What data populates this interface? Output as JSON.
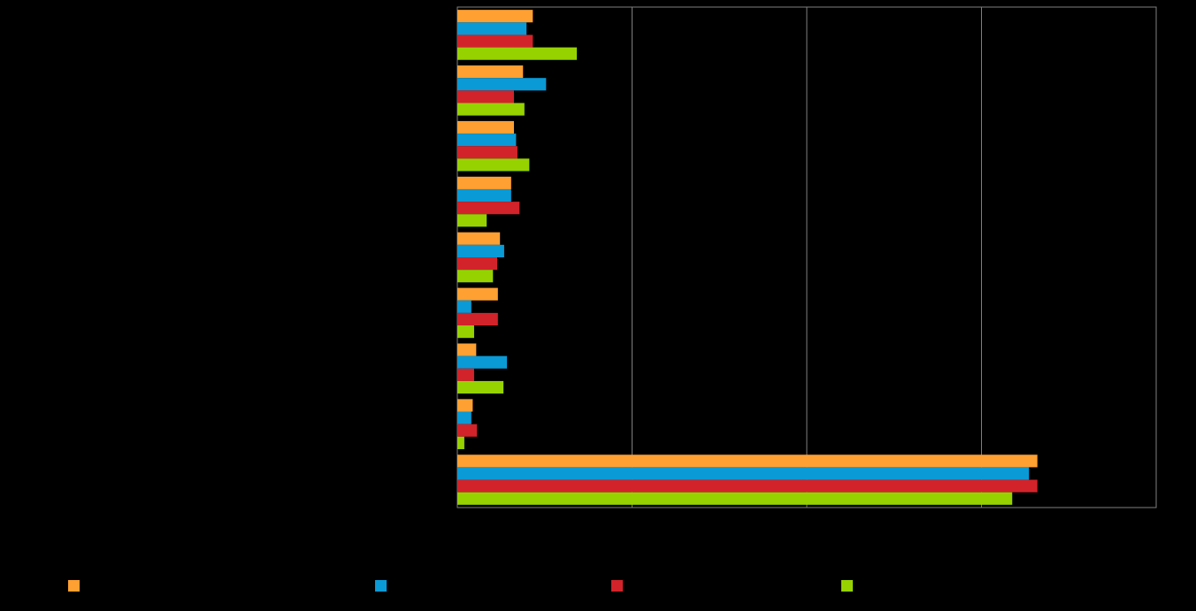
{
  "chart_data": {
    "type": "hbar",
    "categories": [
      null,
      null,
      null,
      null,
      null,
      null,
      null,
      null,
      null
    ],
    "series": [
      {
        "color": "#ffa032",
        "values": [
          10.8,
          9.4,
          8.1,
          7.7,
          6.1,
          5.8,
          2.7,
          2.2,
          83.0
        ]
      },
      {
        "color": "#0a9ad6",
        "values": [
          9.9,
          12.7,
          8.4,
          7.7,
          6.7,
          2.0,
          7.1,
          2.0,
          81.8
        ]
      },
      {
        "color": "#d2232a",
        "values": [
          10.8,
          8.1,
          8.6,
          8.9,
          5.7,
          5.8,
          2.4,
          2.8,
          83.0
        ]
      },
      {
        "color": "#96d200",
        "values": [
          17.1,
          9.6,
          10.3,
          4.2,
          5.1,
          2.4,
          6.6,
          1.0,
          79.4
        ]
      }
    ],
    "xlim": [
      0,
      100
    ],
    "xticks": [
      0,
      25,
      50,
      75,
      100
    ],
    "grid": true
  }
}
